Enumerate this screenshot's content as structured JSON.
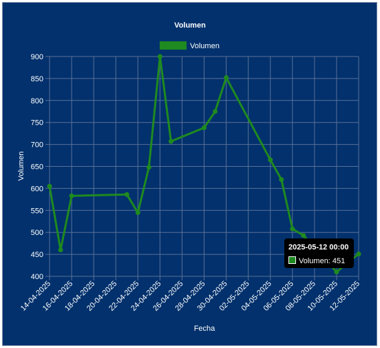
{
  "chart_data": {
    "type": "line",
    "title": "Volumen",
    "xlabel": "Fecha",
    "ylabel": "Volumen",
    "x_tick_labels": [
      "14-04-2025",
      "16-04-2025",
      "18-04-2025",
      "20-04-2025",
      "22-04-2025",
      "24-04-2025",
      "26-04-2025",
      "28-04-2025",
      "30-04-2025",
      "02-05-2025",
      "04-05-2025",
      "06-05-2025",
      "08-05-2025",
      "10-05-2025",
      "12-05-2025"
    ],
    "y_ticks": [
      400,
      450,
      500,
      550,
      600,
      650,
      700,
      750,
      800,
      850,
      900
    ],
    "ylim": [
      400,
      900
    ],
    "xlim": [
      "2025-04-14",
      "2025-05-12"
    ],
    "grid": true,
    "legend_position": "top",
    "series": [
      {
        "name": "Volumen",
        "color": "#1f8a1f",
        "points": [
          {
            "x": "2025-04-14",
            "y": 605
          },
          {
            "x": "2025-04-15",
            "y": 460
          },
          {
            "x": "2025-04-16",
            "y": 583
          },
          {
            "x": "2025-04-21",
            "y": 586
          },
          {
            "x": "2025-04-22",
            "y": 545
          },
          {
            "x": "2025-04-23",
            "y": 648
          },
          {
            "x": "2025-04-24",
            "y": 900
          },
          {
            "x": "2025-04-25",
            "y": 707
          },
          {
            "x": "2025-04-28",
            "y": 738
          },
          {
            "x": "2025-04-29",
            "y": 775
          },
          {
            "x": "2025-04-30",
            "y": 852
          },
          {
            "x": "2025-05-04",
            "y": 665
          },
          {
            "x": "2025-05-05",
            "y": 620
          },
          {
            "x": "2025-05-06",
            "y": 508
          },
          {
            "x": "2025-05-07",
            "y": 493
          },
          {
            "x": "2025-05-10",
            "y": 410
          },
          {
            "x": "2025-05-12",
            "y": 451
          }
        ]
      }
    ],
    "tooltip": {
      "title": "2025-05-12 00:00",
      "label": "Volumen: 451"
    },
    "colors": {
      "background": "#02316d",
      "grid": "#5a7098",
      "line": "#1f8a1f",
      "text": "#ffffff",
      "tooltip_bg": "#000000"
    }
  }
}
